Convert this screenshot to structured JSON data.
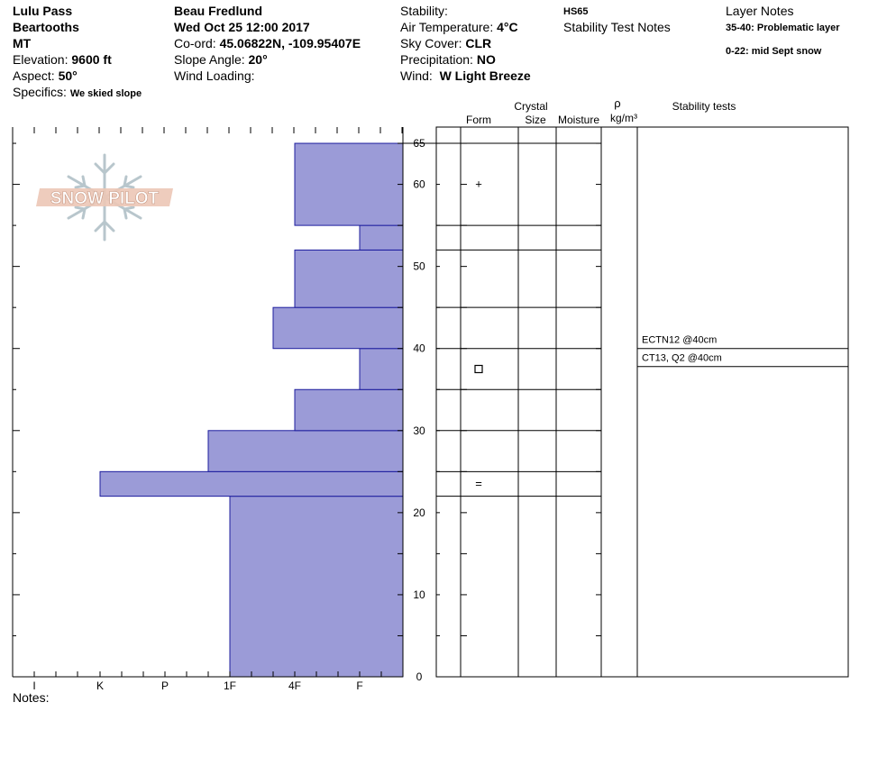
{
  "header": {
    "col1": {
      "location": "Lulu Pass",
      "range": "Beartooths",
      "state": "MT",
      "elevation_label": "Elevation:",
      "elevation": "9600 ft",
      "aspect_label": "Aspect:",
      "aspect": "50°",
      "specifics_label": "Specifics:",
      "specifics": "We skied slope"
    },
    "col2": {
      "observer": "Beau  Fredlund",
      "datetime": "Wed Oct 25 12:00 2017",
      "coord_label": "Co-ord:",
      "coord": "45.06822N, -109.95407E",
      "slope_label": "Slope Angle:",
      "slope": "20°",
      "wind_loading_label": "Wind Loading:"
    },
    "col3": {
      "stability_label": "Stability:",
      "air_temp_label": "Air Temperature:",
      "air_temp": "4°C",
      "sky_label": "Sky Cover:",
      "sky": "CLR",
      "precip_label": "Precipitation:",
      "precip": "NO",
      "wind_label": "Wind:",
      "wind": "W Light Breeze"
    },
    "col4": {
      "hs": "HS65",
      "stability_notes": "Stability Test Notes"
    },
    "col5": {
      "layer_notes_title": "Layer Notes",
      "notes": [
        "35-40: Problematic layer",
        "0-22: mid Sept snow"
      ]
    }
  },
  "logo": {
    "text": "SNOW PILOT"
  },
  "table_headers": {
    "crystal": "Crystal",
    "form": "Form",
    "size": "Size",
    "moisture": "Moisture",
    "rho": "ρ",
    "density_unit": "kg/m³",
    "stability_tests": "Stability tests"
  },
  "footer": {
    "notes_label": "Notes:"
  },
  "chart_data": {
    "type": "bar",
    "orientation": "horizontal-step",
    "description_of_axes": "hardness profile vs snow height",
    "y_axis": {
      "ticks": [
        0,
        10,
        20,
        30,
        40,
        50,
        60,
        65
      ],
      "ylim": [
        0,
        65
      ]
    },
    "x_axis": {
      "ticks": [
        "I",
        "K",
        "P",
        "1F",
        "4F",
        "F"
      ],
      "direction": "hardness increases to the left"
    },
    "layers": [
      {
        "bottom": 0,
        "top": 22,
        "hardness": "1F"
      },
      {
        "bottom": 22,
        "top": 25,
        "hardness": "K-"
      },
      {
        "bottom": 25,
        "top": 30,
        "hardness": "1F+"
      },
      {
        "bottom": 30,
        "top": 35,
        "hardness": "4F"
      },
      {
        "bottom": 35,
        "top": 40,
        "hardness": "F"
      },
      {
        "bottom": 40,
        "top": 45,
        "hardness": "4F+"
      },
      {
        "bottom": 45,
        "top": 52,
        "hardness": "4F"
      },
      {
        "bottom": 52,
        "top": 55,
        "hardness": "F"
      },
      {
        "bottom": 55,
        "top": 65,
        "hardness": "4F"
      }
    ],
    "layer_boundaries": [
      0,
      22,
      25,
      30,
      35,
      40,
      45,
      52,
      55,
      65
    ],
    "grain_forms": [
      {
        "depth": 60,
        "symbol": "+"
      },
      {
        "depth": 37.5,
        "symbol": "□"
      },
      {
        "depth": 23.5,
        "symbol": "="
      }
    ],
    "stability_tests": [
      {
        "text": "ECTN12 @40cm",
        "depth": 40,
        "placement": "above"
      },
      {
        "text": "CT13, Q2 @40cm",
        "depth": 40,
        "placement": "below"
      }
    ],
    "bar_color": "#9b9bd7",
    "bar_edge_color": "#1c1c9e"
  }
}
